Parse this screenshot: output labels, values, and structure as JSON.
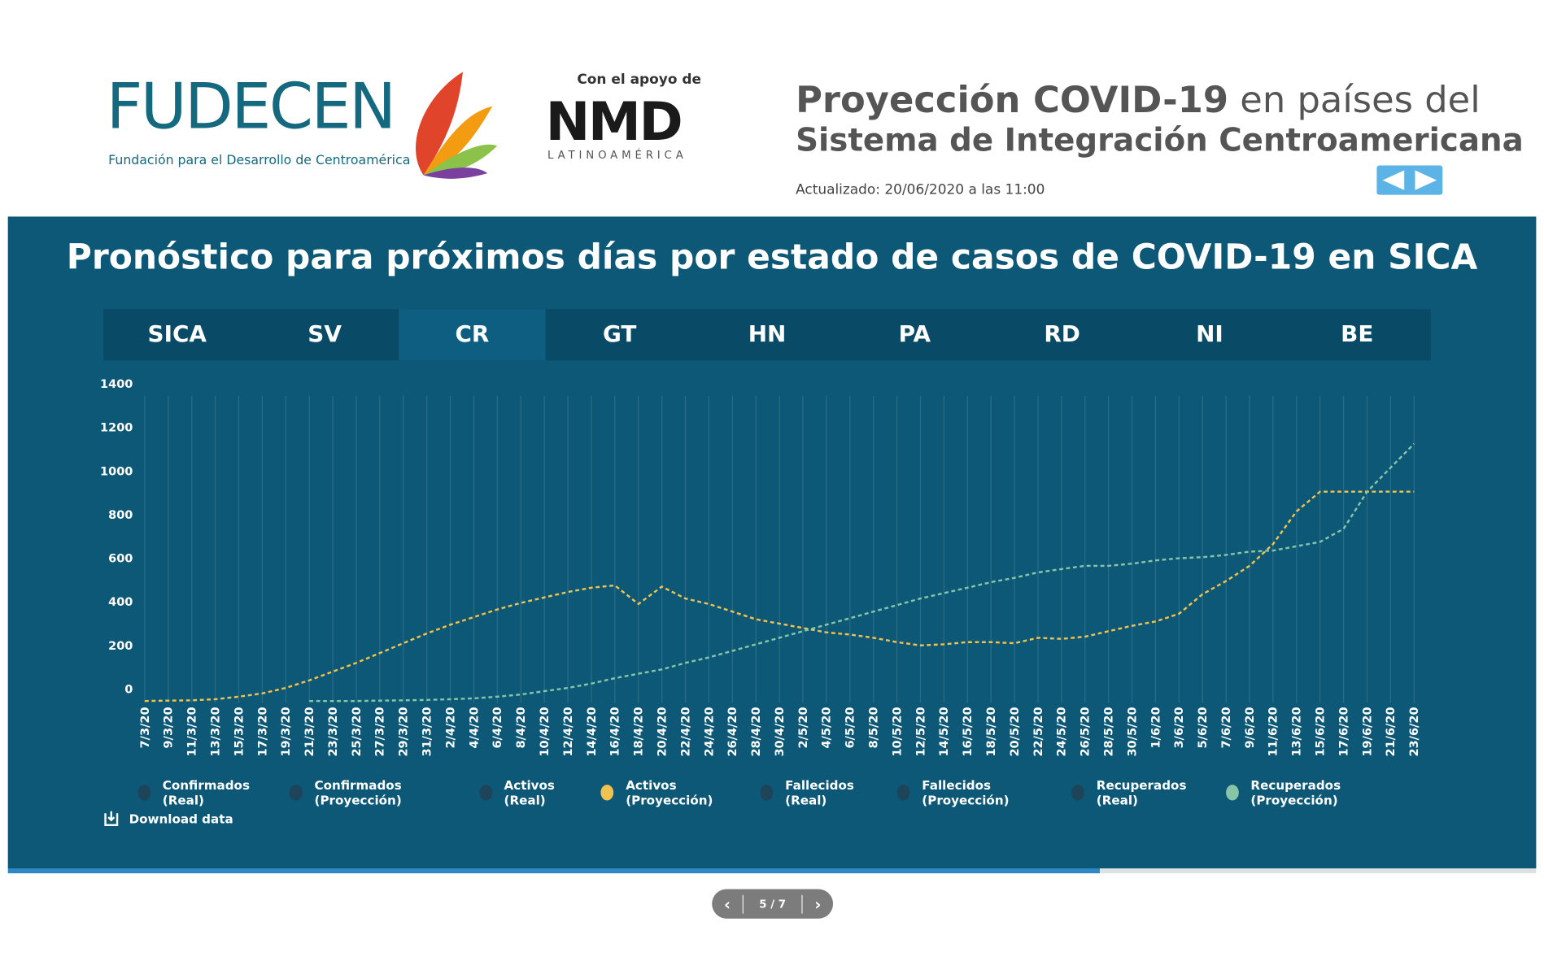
{
  "header": {
    "logo_text": "FUDECEN",
    "logo_subtitle": "Fundación para el Desarrollo de Centroamérica",
    "support_label": "Con el apoyo de",
    "partner_logo": "NMD",
    "partner_subtitle": "LATINOAMÉRICA",
    "title_bold": "Proyección COVID-19",
    "title_rest": "en países del",
    "title_line2": "Sistema de Integración Centroamericana",
    "updated": "Actualizado: 20/06/2020 a las 11:00"
  },
  "tabs": [
    "SICA",
    "SV",
    "CR",
    "GT",
    "HN",
    "PA",
    "RD",
    "NI",
    "BE"
  ],
  "active_tab": "CR",
  "download": "Download data",
  "pager": "5 / 7",
  "chart_data": {
    "type": "line",
    "title": "Pronóstico para próximos días por estado de casos de COVID-19 en SICA",
    "categories": [
      "7/3/20",
      "9/3/20",
      "11/3/20",
      "13/3/20",
      "15/3/20",
      "17/3/20",
      "19/3/20",
      "21/3/20",
      "23/3/20",
      "25/3/20",
      "27/3/20",
      "29/3/20",
      "31/3/20",
      "2/4/20",
      "4/4/20",
      "6/4/20",
      "8/4/20",
      "10/4/20",
      "12/4/20",
      "14/4/20",
      "16/4/20",
      "18/4/20",
      "20/4/20",
      "22/4/20",
      "24/4/20",
      "26/4/20",
      "28/4/20",
      "30/4/20",
      "2/5/20",
      "4/5/20",
      "6/5/20",
      "8/5/20",
      "10/5/20",
      "12/5/20",
      "14/5/20",
      "16/5/20",
      "18/5/20",
      "20/5/20",
      "22/5/20",
      "24/5/20",
      "26/5/20",
      "28/5/20",
      "30/5/20",
      "1/6/20",
      "3/6/20",
      "5/6/20",
      "7/6/20",
      "9/6/20",
      "11/6/20",
      "13/6/20",
      "15/6/20",
      "17/6/20",
      "19/6/20",
      "21/6/20",
      "23/6/20"
    ],
    "series": [
      {
        "name": "Confirmados (Real)",
        "color": "#1d4458"
      },
      {
        "name": "Confirmados (Proyección)",
        "color": "#1d4458"
      },
      {
        "name": "Activos (Real)",
        "color": "#1d4458"
      },
      {
        "name": "Activos (Proyección)",
        "color": "#f0c24f",
        "values": [
          0,
          2,
          3,
          8,
          20,
          35,
          60,
          95,
          135,
          175,
          220,
          265,
          310,
          350,
          385,
          420,
          450,
          475,
          500,
          520,
          530,
          445,
          525,
          470,
          445,
          410,
          375,
          355,
          335,
          315,
          305,
          290,
          270,
          255,
          260,
          270,
          270,
          265,
          290,
          285,
          295,
          320,
          345,
          365,
          400,
          490,
          550,
          620,
          720,
          870,
          960,
          960,
          960,
          960,
          960
        ]
      },
      {
        "name": "Fallecidos (Real)",
        "color": "#1d4458"
      },
      {
        "name": "Fallecidos (Proyección)",
        "color": "#1d4458"
      },
      {
        "name": "Recuperados (Real)",
        "color": "#1d4458"
      },
      {
        "name": "Recuperados (Proyección)",
        "color": "#86c5a8",
        "values": [
          null,
          null,
          null,
          null,
          null,
          null,
          null,
          0,
          0,
          0,
          2,
          3,
          5,
          8,
          12,
          20,
          30,
          45,
          60,
          80,
          105,
          125,
          145,
          175,
          200,
          230,
          260,
          290,
          320,
          350,
          380,
          410,
          440,
          470,
          495,
          520,
          545,
          565,
          590,
          605,
          620,
          620,
          630,
          645,
          655,
          660,
          670,
          685,
          690,
          710,
          730,
          790,
          960,
          1070,
          1180
        ]
      }
    ],
    "ylim": [
      0,
      1400
    ],
    "yticks": [
      0,
      200,
      400,
      600,
      800,
      1000,
      1200,
      1400
    ],
    "grid": true
  }
}
